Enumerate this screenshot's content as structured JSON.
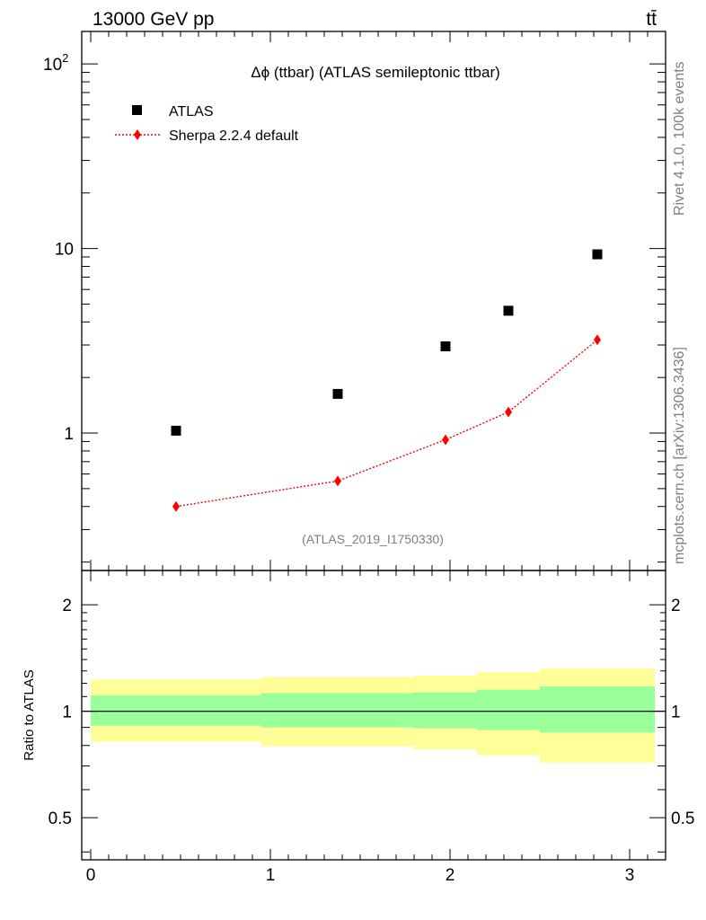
{
  "header": {
    "energy_label": "13000 GeV pp",
    "process_label": "tt̄"
  },
  "side": {
    "rivet_label": "Rivet 4.1.0,  100k events",
    "mcplots_label": "mcplots.cern.ch [arXiv:1306.3436]"
  },
  "colors": {
    "data": "#000000",
    "mc": "#ff0000",
    "band_inner": "#99ff99",
    "band_outer": "#ffff99"
  },
  "chart_data": [
    {
      "type": "scatter",
      "title": "Δϕ (ttbar) (ATLAS semileptonic ttbar)",
      "analysis_label": "(ATLAS_2019_I1750330)",
      "yscale": "log",
      "xlim": [
        -0.05,
        3.2
      ],
      "ylim": [
        0.18,
        150
      ],
      "ytick_labels": [
        "1",
        "10",
        "10^2"
      ],
      "ytick_values": [
        1,
        10,
        100
      ],
      "xlabel": "",
      "ylabel": "",
      "legend": "top-left",
      "x_edges": [
        0,
        0.95,
        1.8,
        2.15,
        2.5,
        3.14
      ],
      "x": [
        0.475,
        1.375,
        1.975,
        2.325,
        2.82
      ],
      "series": [
        {
          "name": "ATLAS",
          "style": "square-marker",
          "values": [
            1.03,
            1.63,
            2.95,
            4.6,
            9.3
          ]
        },
        {
          "name": "Sherpa 2.2.4 default",
          "style": "diamond-dotted-line",
          "values": [
            0.4,
            0.55,
            0.92,
            1.3,
            3.2
          ]
        }
      ]
    },
    {
      "type": "area",
      "title": "",
      "ylabel": "Ratio to ATLAS",
      "xlim": [
        -0.05,
        3.2
      ],
      "ylim": [
        0.38,
        2.5
      ],
      "ytick_labels": [
        "0.5",
        "1",
        "2"
      ],
      "ytick_values": [
        0.5,
        1,
        2
      ],
      "xtick_labels": [
        "0",
        "1",
        "2",
        "3"
      ],
      "xtick_values": [
        0,
        1,
        2,
        3
      ],
      "x_edges": [
        0,
        0.95,
        1.8,
        2.15,
        2.5,
        3.14
      ],
      "series": [
        {
          "name": "Ratio",
          "values": [
            1,
            1,
            1,
            1,
            1
          ]
        },
        {
          "name": "Inner uncertainty low",
          "values": [
            0.91,
            0.9,
            0.895,
            0.885,
            0.87
          ]
        },
        {
          "name": "Inner uncertainty high",
          "values": [
            1.11,
            1.125,
            1.13,
            1.15,
            1.175
          ]
        },
        {
          "name": "Outer uncertainty low",
          "values": [
            0.82,
            0.795,
            0.78,
            0.75,
            0.715
          ]
        },
        {
          "name": "Outer uncertainty high",
          "values": [
            1.23,
            1.25,
            1.26,
            1.29,
            1.32
          ]
        }
      ]
    }
  ]
}
